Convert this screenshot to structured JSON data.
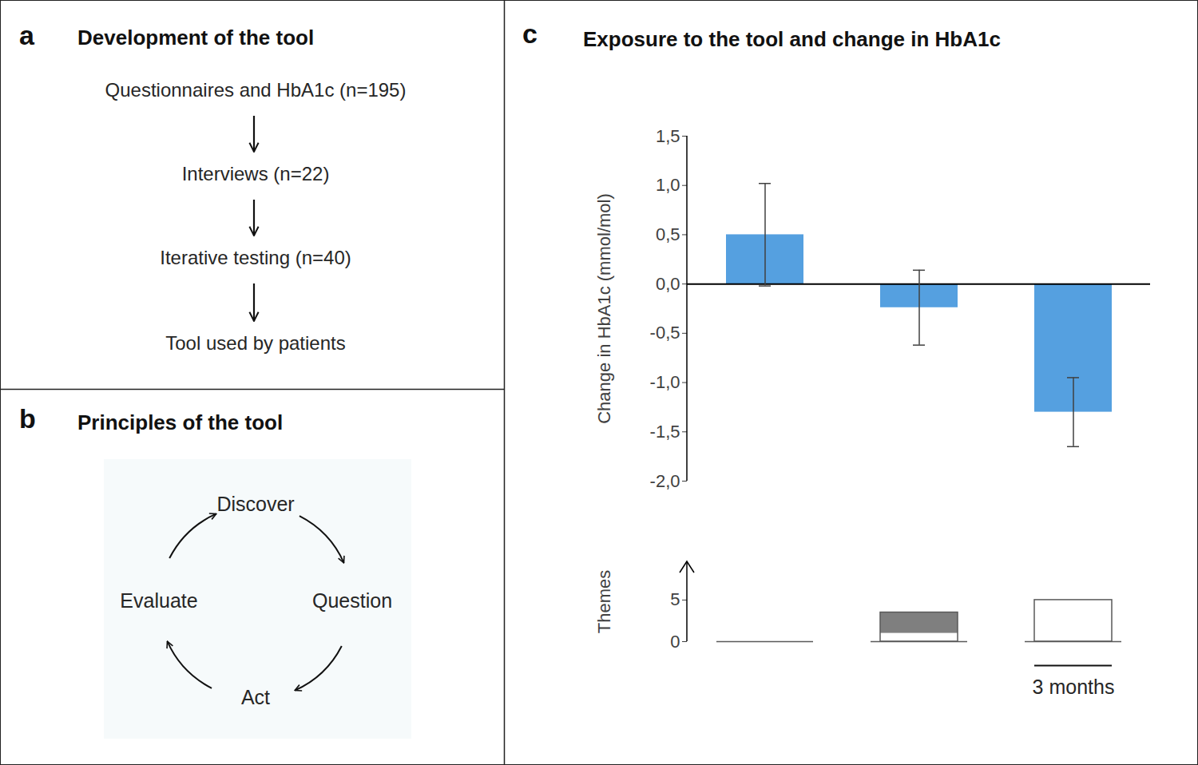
{
  "panels": [
    {
      "letter": "a",
      "title": "Development of the tool",
      "steps": [
        "Questionnaires and HbA1c (n=195)",
        "Interviews (n=22)",
        "Iterative testing (n=40)",
        "Tool used by patients"
      ]
    },
    {
      "letter": "b",
      "title": "Principles of the tool",
      "cycle": [
        "Discover",
        "Question",
        "Act",
        "Evaluate"
      ]
    },
    {
      "letter": "c",
      "title": "Exposure to the tool and change in HbA1c"
    }
  ],
  "chart_data": [
    {
      "type": "bar",
      "categories": [
        null,
        null,
        null
      ],
      "values": [
        0.5,
        -0.24,
        -1.3
      ],
      "errors": [
        0.52,
        0.38,
        0.35
      ],
      "color": "#55a0e0",
      "ylabel": "Change in HbA1c (mmol/mol)",
      "ylim": [
        -2,
        1.5
      ],
      "yticks": [
        {
          "value": -2,
          "label": "-2,0"
        },
        {
          "value": -1.5,
          "label": "-1,5"
        },
        {
          "value": -1,
          "label": "-1,0"
        },
        {
          "value": -0.5,
          "label": "-0,5"
        },
        {
          "value": 0,
          "label": "0,0"
        },
        {
          "value": 0.5,
          "label": "0,5"
        },
        {
          "value": 1,
          "label": "1,0"
        },
        {
          "value": 1.5,
          "label": "1,5"
        }
      ],
      "tick_labels": "y"
    },
    {
      "type": "step",
      "categories": [
        null,
        null,
        null
      ],
      "values": [
        0,
        3.5,
        5
      ],
      "shaded_range": [
        null,
        [
          1,
          3.5
        ],
        null
      ],
      "color": "#7f7f7f",
      "ylabel": "Themes",
      "ylim": [
        0,
        9.6
      ],
      "yticks": [
        0,
        5
      ],
      "tick_labels": "y",
      "annotations": [
        {
          "text": "3 months",
          "at": 2
        }
      ]
    }
  ]
}
